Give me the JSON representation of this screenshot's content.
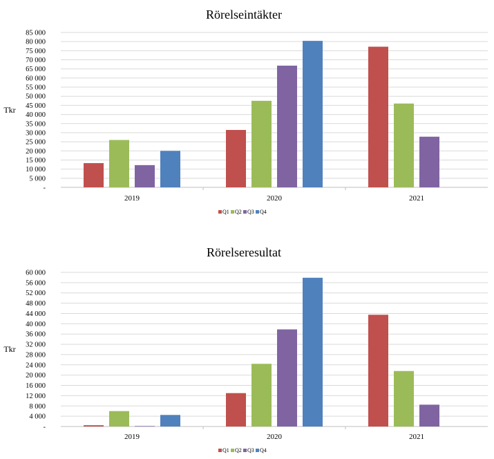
{
  "chart_data": [
    {
      "type": "bar",
      "title": "Rörelseintäkter",
      "ylabel": "Tkr",
      "xlabel": "",
      "categories": [
        "2019",
        "2020",
        "2021"
      ],
      "ylim": [
        0,
        85000
      ],
      "yticks": [
        0,
        5000,
        10000,
        15000,
        20000,
        25000,
        30000,
        35000,
        40000,
        45000,
        50000,
        55000,
        60000,
        65000,
        70000,
        75000,
        80000,
        85000
      ],
      "ytick_labels": [
        "-",
        "5 000",
        "10 000",
        "15 000",
        "20 000",
        "25 000",
        "30 000",
        "35 000",
        "40 000",
        "45 000",
        "50 000",
        "55 000",
        "60 000",
        "65 000",
        "70 000",
        "75 000",
        "80 000",
        "85 000"
      ],
      "grid": true,
      "legend_position": "bottom",
      "series": [
        {
          "name": "Q1",
          "color": "#c0504d",
          "values": [
            13300,
            31500,
            77200
          ]
        },
        {
          "name": "Q2",
          "color": "#9bbb59",
          "values": [
            26000,
            47500,
            46000
          ]
        },
        {
          "name": "Q3",
          "color": "#8064a2",
          "values": [
            12200,
            66800,
            27800
          ]
        },
        {
          "name": "Q4",
          "color": "#4f81bd",
          "values": [
            20000,
            80400,
            null
          ]
        }
      ]
    },
    {
      "type": "bar",
      "title": "Rörelseresultat",
      "ylabel": "Tkr",
      "xlabel": "",
      "categories": [
        "2019",
        "2020",
        "2021"
      ],
      "ylim": [
        0,
        60000
      ],
      "yticks": [
        0,
        4000,
        8000,
        12000,
        16000,
        20000,
        24000,
        28000,
        32000,
        36000,
        40000,
        44000,
        48000,
        52000,
        56000,
        60000
      ],
      "ytick_labels": [
        "-",
        "4 000",
        "8 000",
        "12 000",
        "16 000",
        "20 000",
        "24 000",
        "28 000",
        "32 000",
        "36 000",
        "40 000",
        "44 000",
        "48 000",
        "52 000",
        "56 000",
        "60 000"
      ],
      "grid": true,
      "legend_position": "bottom",
      "series": [
        {
          "name": "Q1",
          "color": "#c0504d",
          "values": [
            500,
            13000,
            43500
          ]
        },
        {
          "name": "Q2",
          "color": "#9bbb59",
          "values": [
            6000,
            24400,
            21600
          ]
        },
        {
          "name": "Q3",
          "color": "#8064a2",
          "values": [
            200,
            37800,
            8500
          ]
        },
        {
          "name": "Q4",
          "color": "#4f81bd",
          "values": [
            4500,
            57900,
            null
          ]
        }
      ]
    }
  ]
}
